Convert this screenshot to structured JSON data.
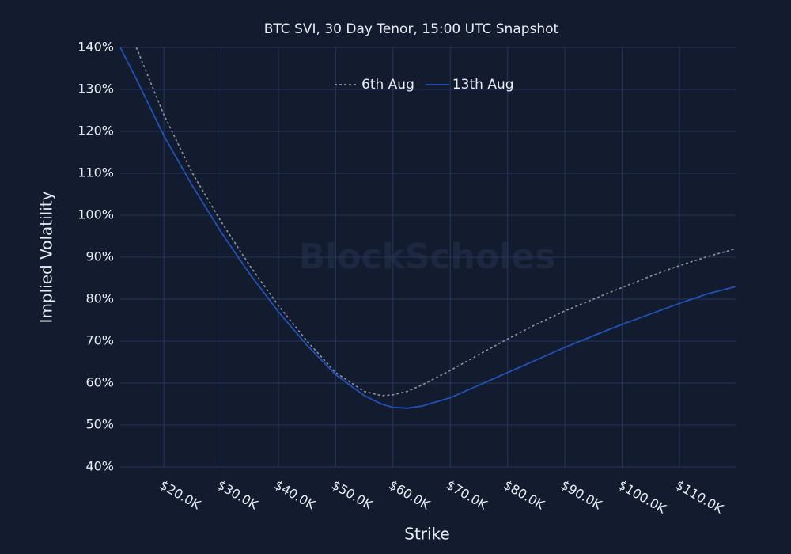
{
  "chart_data": {
    "type": "line",
    "title": "BTC SVI, 30 Day Tenor, 15:00 UTC Snapshot",
    "x_label": "Strike",
    "y_label": "Implied Volatility",
    "watermark": "BlockScholes",
    "x": [
      12400,
      15200,
      20000,
      25000,
      30000,
      35000,
      40000,
      45000,
      50000,
      55000,
      58000,
      60000,
      62500,
      65000,
      70000,
      75000,
      80000,
      85000,
      90000,
      95000,
      100000,
      105000,
      110000,
      115000,
      119800
    ],
    "series": [
      {
        "name": "6th Aug",
        "color": "#8f949c",
        "dash": true,
        "values": [
          null,
          140,
          124,
          110,
          98.5,
          88,
          78.5,
          70,
          62.5,
          58,
          57,
          57.2,
          58,
          59.5,
          63,
          66.8,
          70.5,
          74,
          77.2,
          80,
          82.8,
          85.5,
          88,
          90.2,
          92
        ]
      },
      {
        "name": "13th Aug",
        "color": "#1f52b8",
        "dash": false,
        "values": [
          140,
          132.5,
          119,
          107,
          96,
          86,
          77,
          69,
          62,
          57,
          55,
          54.2,
          54,
          54.5,
          56.5,
          59.5,
          62.5,
          65.5,
          68.5,
          71.3,
          74,
          76.5,
          79,
          81.3,
          83
        ]
      }
    ],
    "xlim": [
      12400,
      119800
    ],
    "ylim": [
      40,
      140
    ],
    "xticks": [
      {
        "value": 20000,
        "label": "$20.0K"
      },
      {
        "value": 30000,
        "label": "$30.0K"
      },
      {
        "value": 40000,
        "label": "$40.0K"
      },
      {
        "value": 50000,
        "label": "$50.0K"
      },
      {
        "value": 60000,
        "label": "$60.0K"
      },
      {
        "value": 70000,
        "label": "$70.0K"
      },
      {
        "value": 80000,
        "label": "$80.0K"
      },
      {
        "value": 90000,
        "label": "$90.0K"
      },
      {
        "value": 100000,
        "label": "$100.0K"
      },
      {
        "value": 110000,
        "label": "$110.0K"
      }
    ],
    "yticks": [
      {
        "value": 40,
        "label": "40%"
      },
      {
        "value": 50,
        "label": "50%"
      },
      {
        "value": 60,
        "label": "60%"
      },
      {
        "value": 70,
        "label": "70%"
      },
      {
        "value": 80,
        "label": "80%"
      },
      {
        "value": 90,
        "label": "90%"
      },
      {
        "value": 100,
        "label": "100%"
      },
      {
        "value": 110,
        "label": "110%"
      },
      {
        "value": 120,
        "label": "120%"
      },
      {
        "value": 130,
        "label": "130%"
      },
      {
        "value": 140,
        "label": "140%"
      }
    ],
    "grid": true,
    "legend": "top"
  }
}
